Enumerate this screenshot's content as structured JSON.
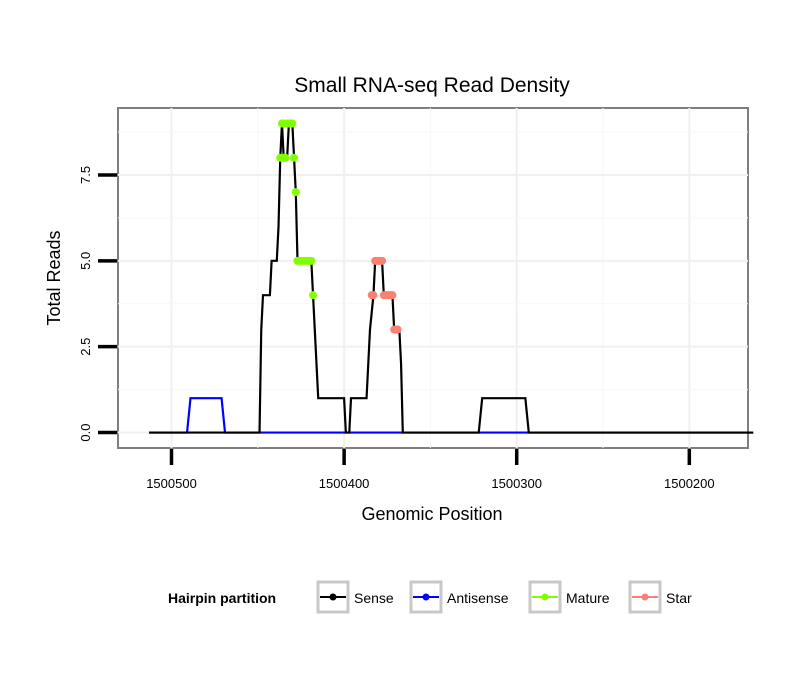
{
  "chart_data": {
    "type": "line",
    "title": "Small RNA-seq Read Density",
    "xlabel": "Genomic Position",
    "ylabel": "Total Reads",
    "x_reversed": true,
    "xlim": [
      1500531,
      1500166
    ],
    "ylim": [
      -0.45,
      9.45
    ],
    "x_ticks": [
      1500500,
      1500400,
      1500300,
      1500200
    ],
    "x_tick_labels": [
      "1500500",
      "1500400",
      "1500300",
      "1500200"
    ],
    "y_ticks": [
      0,
      2.5,
      5,
      7.5
    ],
    "y_tick_labels": [
      "0.0",
      "2.5",
      "5.0",
      "7.5"
    ],
    "grid": true,
    "legend": {
      "title": "Hairpin partition",
      "position": "bottom",
      "entries": [
        {
          "label": "Sense",
          "color": "#000000"
        },
        {
          "label": "Antisense",
          "color": "#0000ff"
        },
        {
          "label": "Mature",
          "color": "#7fff00"
        },
        {
          "label": "Star",
          "color": "#fa8072"
        }
      ]
    },
    "series": [
      {
        "name": "Sense",
        "color": "#000000",
        "points": [
          [
            1500513,
            0
          ],
          [
            1500449,
            0
          ],
          [
            1500448,
            3
          ],
          [
            1500447,
            4
          ],
          [
            1500443,
            4
          ],
          [
            1500442,
            5
          ],
          [
            1500439,
            5
          ],
          [
            1500438,
            6
          ],
          [
            1500437,
            8
          ],
          [
            1500436,
            9
          ],
          [
            1500435,
            8
          ],
          [
            1500433,
            8
          ],
          [
            1500432,
            9
          ],
          [
            1500430,
            9
          ],
          [
            1500429,
            8
          ],
          [
            1500428,
            7
          ],
          [
            1500427,
            5
          ],
          [
            1500419,
            5
          ],
          [
            1500418,
            4
          ],
          [
            1500417,
            3
          ],
          [
            1500416,
            2
          ],
          [
            1500415,
            1
          ],
          [
            1500400,
            1
          ],
          [
            1500399,
            0
          ],
          [
            1500397,
            0
          ],
          [
            1500396,
            1
          ],
          [
            1500387,
            1
          ],
          [
            1500386,
            2
          ],
          [
            1500385,
            3
          ],
          [
            1500383,
            4
          ],
          [
            1500382,
            5
          ],
          [
            1500378,
            5
          ],
          [
            1500377,
            4
          ],
          [
            1500372,
            4
          ],
          [
            1500371,
            3
          ],
          [
            1500368,
            3
          ],
          [
            1500367,
            2
          ],
          [
            1500366,
            0
          ],
          [
            1500322,
            0
          ],
          [
            1500320,
            1
          ],
          [
            1500295,
            1
          ],
          [
            1500293,
            0
          ],
          [
            1500163,
            0
          ]
        ]
      },
      {
        "name": "Antisense",
        "color": "#0000ff",
        "points": [
          [
            1500513,
            0
          ],
          [
            1500491,
            0
          ],
          [
            1500489,
            1
          ],
          [
            1500471,
            1
          ],
          [
            1500469,
            0
          ],
          [
            1500163,
            0
          ]
        ]
      }
    ],
    "markers": [
      {
        "name": "Mature",
        "color": "#7fff00",
        "points": [
          [
            1500437,
            8
          ],
          [
            1500436,
            9
          ],
          [
            1500435,
            9
          ],
          [
            1500435,
            8
          ],
          [
            1500434,
            8
          ],
          [
            1500433,
            9
          ],
          [
            1500432,
            9
          ],
          [
            1500431,
            9
          ],
          [
            1500430,
            9
          ],
          [
            1500429,
            8
          ],
          [
            1500428,
            7
          ],
          [
            1500427,
            5
          ],
          [
            1500426,
            5
          ],
          [
            1500425,
            5
          ],
          [
            1500424,
            5
          ],
          [
            1500423,
            5
          ],
          [
            1500422,
            5
          ],
          [
            1500421,
            5
          ],
          [
            1500420,
            5
          ],
          [
            1500419,
            5
          ],
          [
            1500418,
            4
          ]
        ]
      },
      {
        "name": "Star",
        "color": "#fa8072",
        "points": [
          [
            1500384,
            4
          ],
          [
            1500383,
            4
          ],
          [
            1500382,
            5
          ],
          [
            1500381,
            5
          ],
          [
            1500380,
            5
          ],
          [
            1500379,
            5
          ],
          [
            1500378,
            5
          ],
          [
            1500377,
            4
          ],
          [
            1500376,
            4
          ],
          [
            1500375,
            4
          ],
          [
            1500374,
            4
          ],
          [
            1500373,
            4
          ],
          [
            1500372,
            4
          ],
          [
            1500371,
            3
          ],
          [
            1500370,
            3
          ],
          [
            1500369,
            3
          ]
        ]
      }
    ]
  }
}
